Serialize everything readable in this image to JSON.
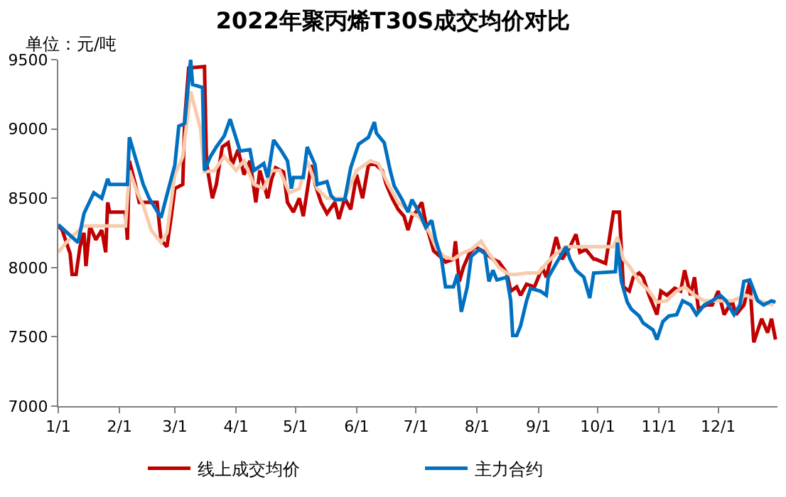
{
  "chart_data": {
    "type": "line",
    "title": "2022年聚丙烯T30S成交均价对比",
    "ylabel": "单位：元/吨",
    "xlim": [
      "2022-01-01",
      "2022-12-31"
    ],
    "xticks": [
      {
        "value": "2022-01-01",
        "label": "1/1"
      },
      {
        "value": "2022-02-01",
        "label": "2/1"
      },
      {
        "value": "2022-03-01",
        "label": "3/1"
      },
      {
        "value": "2022-04-01",
        "label": "4/1"
      },
      {
        "value": "2022-05-01",
        "label": "5/1"
      },
      {
        "value": "2022-06-01",
        "label": "6/1"
      },
      {
        "value": "2022-07-01",
        "label": "7/1"
      },
      {
        "value": "2022-08-01",
        "label": "8/1"
      },
      {
        "value": "2022-09-01",
        "label": "9/1"
      },
      {
        "value": "2022-10-01",
        "label": "10/1"
      },
      {
        "value": "2022-11-01",
        "label": "11/1"
      },
      {
        "value": "2022-12-01",
        "label": "12/1"
      }
    ],
    "ylim": [
      7000,
      9500
    ],
    "yticks": [
      7000,
      7500,
      8000,
      8500,
      9000,
      9500
    ],
    "legend": "bottom",
    "marker": "none",
    "line_style": "solid",
    "series": [
      {
        "name": "线上成交均价",
        "color": "#c00000",
        "x": [
          "2022-01-01",
          "2022-01-03",
          "2022-01-07",
          "2022-01-08",
          "2022-01-10",
          "2022-01-12",
          "2022-01-14",
          "2022-01-15",
          "2022-01-17",
          "2022-01-20",
          "2022-01-23",
          "2022-01-25",
          "2022-01-26",
          "2022-01-27",
          "2022-02-04",
          "2022-02-05",
          "2022-02-06",
          "2022-02-09",
          "2022-02-11",
          "2022-02-20",
          "2022-02-22",
          "2022-02-25",
          "2022-02-27",
          "2022-03-01",
          "2022-03-05",
          "2022-03-06",
          "2022-03-08",
          "2022-03-16",
          "2022-03-17",
          "2022-03-18",
          "2022-03-20",
          "2022-03-22",
          "2022-03-25",
          "2022-03-28",
          "2022-03-30",
          "2022-04-02",
          "2022-04-05",
          "2022-04-08",
          "2022-04-11",
          "2022-04-13",
          "2022-04-17",
          "2022-04-19",
          "2022-04-21",
          "2022-04-25",
          "2022-04-27",
          "2022-04-30",
          "2022-05-03",
          "2022-05-05",
          "2022-05-09",
          "2022-05-11",
          "2022-05-14",
          "2022-05-17",
          "2022-05-21",
          "2022-05-23",
          "2022-05-26",
          "2022-05-29",
          "2022-06-01",
          "2022-06-04",
          "2022-06-07",
          "2022-06-10",
          "2022-06-14",
          "2022-06-16",
          "2022-06-19",
          "2022-06-22",
          "2022-06-25",
          "2022-06-27",
          "2022-06-29",
          "2022-07-01",
          "2022-07-04",
          "2022-07-06",
          "2022-07-10",
          "2022-07-14",
          "2022-07-16",
          "2022-07-20",
          "2022-07-21",
          "2022-07-23",
          "2022-07-25",
          "2022-07-28",
          "2022-07-31",
          "2022-08-05",
          "2022-08-09",
          "2022-08-12",
          "2022-08-16",
          "2022-08-18",
          "2022-08-21",
          "2022-08-23",
          "2022-08-26",
          "2022-08-30",
          "2022-09-03",
          "2022-09-05",
          "2022-09-08",
          "2022-09-10",
          "2022-09-13",
          "2022-09-17",
          "2022-09-20",
          "2022-09-22",
          "2022-09-25",
          "2022-09-29",
          "2022-09-30",
          "2022-10-05",
          "2022-10-09",
          "2022-10-12",
          "2022-10-14",
          "2022-10-17",
          "2022-10-19",
          "2022-10-22",
          "2022-10-24",
          "2022-10-27",
          "2022-10-31",
          "2022-11-02",
          "2022-11-05",
          "2022-11-09",
          "2022-11-12",
          "2022-11-14",
          "2022-11-17",
          "2022-11-19",
          "2022-11-21",
          "2022-11-25",
          "2022-11-28",
          "2022-12-01",
          "2022-12-04",
          "2022-12-08",
          "2022-12-10",
          "2022-12-14",
          "2022-12-17",
          "2022-12-19",
          "2022-12-23",
          "2022-12-26",
          "2022-12-28",
          "2022-12-30"
        ],
        "values": [
          8300,
          8270,
          8100,
          7950,
          7950,
          8150,
          8250,
          8010,
          8300,
          8200,
          8270,
          8110,
          8470,
          8400,
          8400,
          8200,
          8770,
          8600,
          8470,
          8470,
          8200,
          8150,
          8350,
          8570,
          8600,
          9070,
          9440,
          9450,
          8770,
          8670,
          8500,
          8600,
          8870,
          8900,
          8740,
          8850,
          8670,
          8770,
          8470,
          8700,
          8500,
          8640,
          8720,
          8690,
          8470,
          8400,
          8500,
          8370,
          8740,
          8600,
          8470,
          8390,
          8470,
          8350,
          8500,
          8420,
          8670,
          8500,
          8740,
          8750,
          8700,
          8600,
          8500,
          8420,
          8370,
          8270,
          8370,
          8400,
          8470,
          8320,
          8120,
          8070,
          8040,
          8060,
          8190,
          7900,
          8000,
          8100,
          8150,
          8110,
          8060,
          8040,
          7960,
          7830,
          7860,
          7800,
          7880,
          7860,
          8000,
          7930,
          8100,
          8220,
          8060,
          8150,
          8240,
          8110,
          8130,
          8060,
          8060,
          8030,
          8400,
          8400,
          7860,
          7830,
          7930,
          7960,
          7930,
          7800,
          7660,
          7830,
          7800,
          7850,
          7830,
          7980,
          7800,
          7930,
          7700,
          7730,
          7730,
          7830,
          7660,
          7760,
          7660,
          7730,
          7900,
          7460,
          7630,
          7530,
          7630,
          7480
        ]
      },
      {
        "color": "#f8cbad",
        "x": [
          "2022-01-01",
          "2022-01-05",
          "2022-01-10",
          "2022-01-14",
          "2022-02-04",
          "2022-02-06",
          "2022-02-10",
          "2022-02-13",
          "2022-02-17",
          "2022-02-22",
          "2022-02-25",
          "2022-03-01",
          "2022-03-05",
          "2022-03-09",
          "2022-03-14",
          "2022-03-16",
          "2022-03-21",
          "2022-03-26",
          "2022-04-01",
          "2022-04-05",
          "2022-04-10",
          "2022-04-15",
          "2022-04-19",
          "2022-04-23",
          "2022-04-28",
          "2022-05-03",
          "2022-05-07",
          "2022-05-12",
          "2022-05-17",
          "2022-05-26",
          "2022-06-01",
          "2022-06-08",
          "2022-06-12",
          "2022-06-17",
          "2022-06-22",
          "2022-06-29",
          "2022-07-03",
          "2022-07-08",
          "2022-07-11",
          "2022-07-15",
          "2022-07-20",
          "2022-07-24",
          "2022-07-29",
          "2022-08-03",
          "2022-08-07",
          "2022-08-12",
          "2022-08-17",
          "2022-08-21",
          "2022-08-26",
          "2022-09-01",
          "2022-09-05",
          "2022-09-10",
          "2022-09-15",
          "2022-10-02",
          "2022-10-09",
          "2022-10-11",
          "2022-10-14",
          "2022-10-17",
          "2022-10-22",
          "2022-10-27",
          "2022-10-31",
          "2022-11-05",
          "2022-11-10",
          "2022-11-14",
          "2022-11-19",
          "2022-11-24",
          "2022-12-08",
          "2022-12-15",
          "2022-12-22",
          "2022-12-29"
        ],
        "values": [
          8110,
          8180,
          8250,
          8300,
          8300,
          8700,
          8540,
          8450,
          8270,
          8180,
          8250,
          8670,
          8800,
          9270,
          9000,
          8690,
          8700,
          8800,
          8700,
          8770,
          8600,
          8570,
          8700,
          8700,
          8540,
          8570,
          8770,
          8570,
          8500,
          8500,
          8700,
          8770,
          8750,
          8600,
          8470,
          8390,
          8360,
          8250,
          8150,
          8080,
          8060,
          8100,
          8130,
          8190,
          8100,
          8000,
          7950,
          7950,
          7960,
          7960,
          8030,
          8100,
          8150,
          8150,
          8150,
          8220,
          8060,
          8010,
          7900,
          7830,
          7750,
          7760,
          7830,
          7860,
          7800,
          7760,
          7760,
          7800,
          7760,
          7730
        ]
      },
      {
        "name": "主力合约",
        "color": "#0070c0",
        "x": [
          "2022-01-01",
          "2022-01-11",
          "2022-01-14",
          "2022-01-19",
          "2022-01-23",
          "2022-01-26",
          "2022-01-27",
          "2022-02-05",
          "2022-02-06",
          "2022-02-13",
          "2022-02-16",
          "2022-02-22",
          "2022-02-24",
          "2022-03-01",
          "2022-03-03",
          "2022-03-06",
          "2022-03-09",
          "2022-03-10",
          "2022-03-15",
          "2022-03-16",
          "2022-03-19",
          "2022-03-22",
          "2022-03-26",
          "2022-03-29",
          "2022-04-03",
          "2022-04-08",
          "2022-04-10",
          "2022-04-15",
          "2022-04-17",
          "2022-04-20",
          "2022-04-24",
          "2022-04-27",
          "2022-04-29",
          "2022-04-30",
          "2022-05-05",
          "2022-05-07",
          "2022-05-11",
          "2022-05-12",
          "2022-05-17",
          "2022-05-19",
          "2022-05-21",
          "2022-05-26",
          "2022-05-29",
          "2022-06-02",
          "2022-06-07",
          "2022-06-10",
          "2022-06-11",
          "2022-06-15",
          "2022-06-18",
          "2022-06-20",
          "2022-06-24",
          "2022-06-27",
          "2022-06-29",
          "2022-07-03",
          "2022-07-06",
          "2022-07-09",
          "2022-07-11",
          "2022-07-14",
          "2022-07-16",
          "2022-07-20",
          "2022-07-22",
          "2022-07-24",
          "2022-07-27",
          "2022-07-29",
          "2022-08-02",
          "2022-08-05",
          "2022-08-07",
          "2022-08-09",
          "2022-08-11",
          "2022-08-16",
          "2022-08-18",
          "2022-08-19",
          "2022-08-21",
          "2022-08-23",
          "2022-08-26",
          "2022-08-28",
          "2022-09-02",
          "2022-09-05",
          "2022-09-06",
          "2022-09-10",
          "2022-09-15",
          "2022-09-17",
          "2022-09-20",
          "2022-09-24",
          "2022-09-27",
          "2022-09-29",
          "2022-10-10",
          "2022-10-11",
          "2022-10-13",
          "2022-10-16",
          "2022-10-18",
          "2022-10-22",
          "2022-10-24",
          "2022-10-29",
          "2022-10-31",
          "2022-11-03",
          "2022-11-06",
          "2022-11-10",
          "2022-11-13",
          "2022-11-17",
          "2022-11-20",
          "2022-11-24",
          "2022-11-28",
          "2022-12-02",
          "2022-12-05",
          "2022-12-09",
          "2022-12-12",
          "2022-12-14",
          "2022-12-17",
          "2022-12-21",
          "2022-12-24",
          "2022-12-28",
          "2022-12-30"
        ],
        "values": [
          8310,
          8180,
          8390,
          8540,
          8500,
          8640,
          8600,
          8600,
          8940,
          8600,
          8500,
          8360,
          8470,
          8740,
          9020,
          9040,
          9500,
          9320,
          9300,
          8700,
          8800,
          8870,
          8950,
          9070,
          8840,
          8850,
          8700,
          8750,
          8650,
          8920,
          8840,
          8770,
          8570,
          8650,
          8650,
          8870,
          8740,
          8600,
          8620,
          8520,
          8490,
          8490,
          8720,
          8890,
          8940,
          9050,
          8970,
          8900,
          8700,
          8590,
          8490,
          8400,
          8490,
          8390,
          8290,
          8340,
          8200,
          8060,
          7860,
          7860,
          7950,
          7680,
          7860,
          8080,
          8130,
          8100,
          7900,
          7980,
          7910,
          7930,
          7760,
          7510,
          7510,
          7580,
          7760,
          7850,
          7830,
          7800,
          7930,
          8030,
          8150,
          8060,
          7980,
          7930,
          7780,
          7960,
          7970,
          8180,
          7900,
          7750,
          7700,
          7650,
          7600,
          7550,
          7480,
          7610,
          7650,
          7660,
          7760,
          7730,
          7660,
          7730,
          7760,
          7800,
          7760,
          7660,
          7730,
          7900,
          7910,
          7760,
          7730,
          7760,
          7750
        ]
      }
    ]
  }
}
